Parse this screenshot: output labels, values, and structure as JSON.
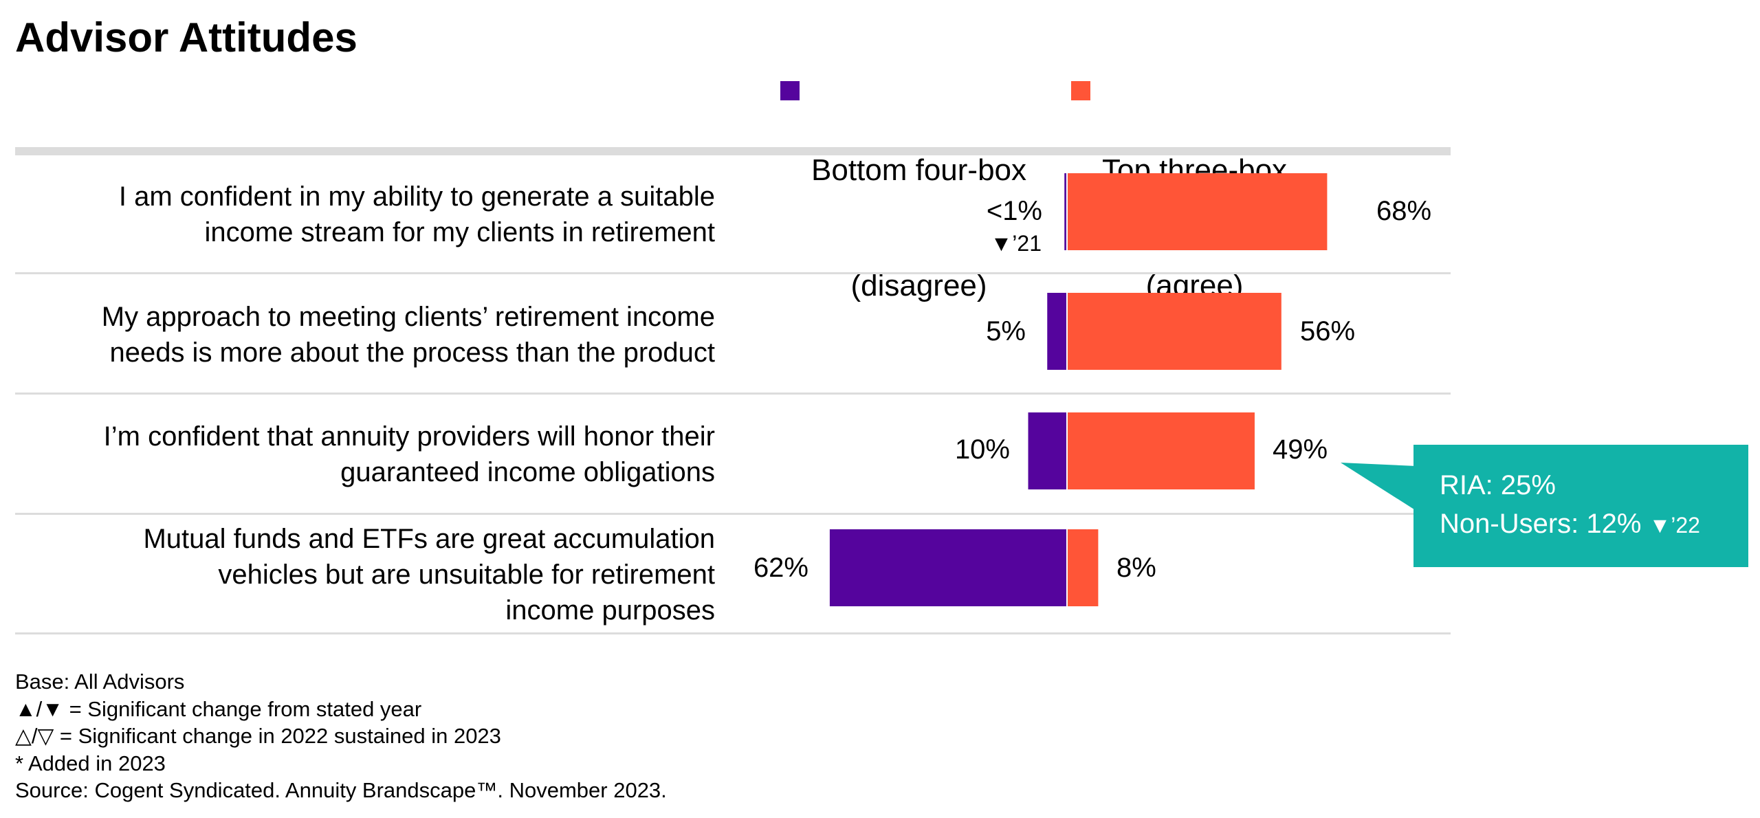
{
  "chart_data": {
    "type": "bar",
    "orientation": "horizontal-diverging",
    "title": "Advisor Attitudes",
    "series": [
      {
        "name": "Bottom four-box (disagree)",
        "color": "#55049d"
      },
      {
        "name": "Top three-box (agree)",
        "color": "#ff5537"
      }
    ],
    "legend_lines": [
      [
        "Bottom four-box",
        "(disagree)"
      ],
      [
        "Top three-box",
        "(agree)"
      ]
    ],
    "legend_position": "top",
    "categories": [
      {
        "label": "I am confident in my ability to generate a suitable\nincome stream for my clients in retirement",
        "disagree": 0.5,
        "disagree_label": "<1%",
        "disagree_note": "▼’21",
        "agree": 68,
        "agree_label": "68%"
      },
      {
        "label": "My approach to meeting clients’ retirement income\nneeds is more about the process than the product",
        "disagree": 5,
        "disagree_label": "5%",
        "disagree_note": "",
        "agree": 56,
        "agree_label": "56%"
      },
      {
        "label": "I’m confident that annuity providers will honor their\nguaranteed income obligations",
        "disagree": 10,
        "disagree_label": "10%",
        "disagree_note": "",
        "agree": 49,
        "agree_label": "49%"
      },
      {
        "label": "Mutual funds and ETFs are great accumulation\nvehicles but are unsuitable for retirement\nincome purposes",
        "disagree": 62,
        "disagree_label": "62%",
        "disagree_note": "",
        "agree": 8,
        "agree_label": "8%"
      }
    ],
    "callout": {
      "category_index": 2,
      "line1": "RIA: 25%",
      "line2": "Non-Users: 12%",
      "line2_note": "▼’22",
      "color": "#12b3a8"
    },
    "footnotes": [
      "Base: All Advisors",
      "▲/▼ = Significant change from stated year",
      "△/▽ = Significant change in 2022 sustained in 2023",
      "* Added in 2023",
      "Source: Cogent Syndicated. Annuity Brandscape™. November 2023."
    ]
  }
}
